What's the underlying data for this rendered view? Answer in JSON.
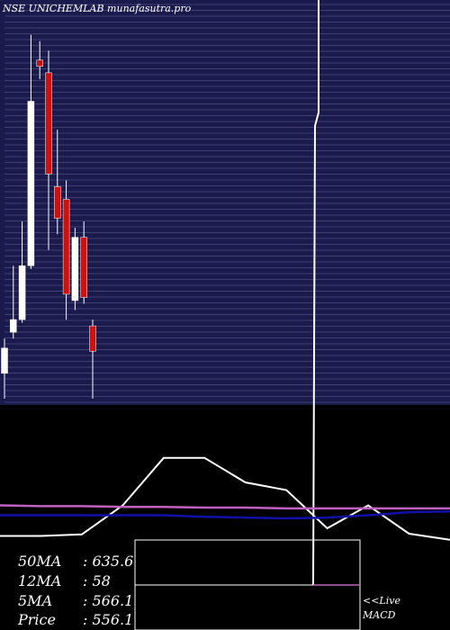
{
  "header": {
    "title": "NSE UNICHEMLAB munafasutra.pro"
  },
  "chart_data": [
    {
      "type": "candlestick",
      "title": "NSE UNICHEMLAB munafasutra.pro",
      "candles": [
        {
          "open": 520,
          "close": 560,
          "high": 575,
          "low": 480,
          "color": "white"
        },
        {
          "open": 585,
          "close": 605,
          "high": 690,
          "low": 575,
          "color": "white"
        },
        {
          "open": 605,
          "close": 690,
          "high": 760,
          "low": 600,
          "color": "white"
        },
        {
          "open": 690,
          "close": 950,
          "high": 1055,
          "low": 685,
          "color": "white"
        },
        {
          "open": 1015,
          "close": 1005,
          "high": 1045,
          "low": 985,
          "color": "red"
        },
        {
          "open": 995,
          "close": 835,
          "high": 1030,
          "low": 715,
          "color": "red"
        },
        {
          "open": 815,
          "close": 765,
          "high": 905,
          "low": 740,
          "color": "red"
        },
        {
          "open": 795,
          "close": 645,
          "high": 825,
          "low": 605,
          "color": "red"
        },
        {
          "open": 635,
          "close": 735,
          "high": 750,
          "low": 620,
          "color": "white"
        },
        {
          "open": 735,
          "close": 640,
          "high": 760,
          "low": 630,
          "color": "red"
        },
        {
          "open": 595,
          "close": 555,
          "high": 605,
          "low": 480,
          "color": "red"
        }
      ],
      "ylim": [
        470,
        1110
      ]
    },
    {
      "type": "line",
      "series": [
        {
          "color": "#ffffff",
          "values": [
            -30,
            -30,
            -28,
            10,
            72,
            72,
            40,
            30,
            -20,
            10,
            -27,
            -35
          ]
        },
        {
          "color": "#c060c0",
          "values": [
            10,
            9,
            9,
            8,
            8,
            7,
            7,
            6,
            6,
            6,
            6,
            6
          ]
        },
        {
          "color": "#1010aa",
          "values": [
            -3,
            -3,
            -3,
            -3,
            -3,
            -5,
            -6,
            -7,
            -6,
            -3,
            1,
            2
          ]
        }
      ],
      "macd_value": -85
    }
  ],
  "legend": {
    "ma50_label": "50MA",
    "ma50_value": ": 635.6",
    "ma12_label": "12MA",
    "ma12_value": ": 58",
    "ma5_label": "5MA",
    "ma5_value": ": 566.1",
    "price_label": "Price",
    "price_value": ": 556.1"
  },
  "macd": {
    "live_label": "<<Live",
    "macd_label": "MACD"
  },
  "colors": {
    "panel_bg": "#1a1a4d",
    "grid": "#7f7fb0",
    "candle_up": "#ffffff",
    "candle_down": "#cc1111",
    "spike": "#ffffff"
  }
}
